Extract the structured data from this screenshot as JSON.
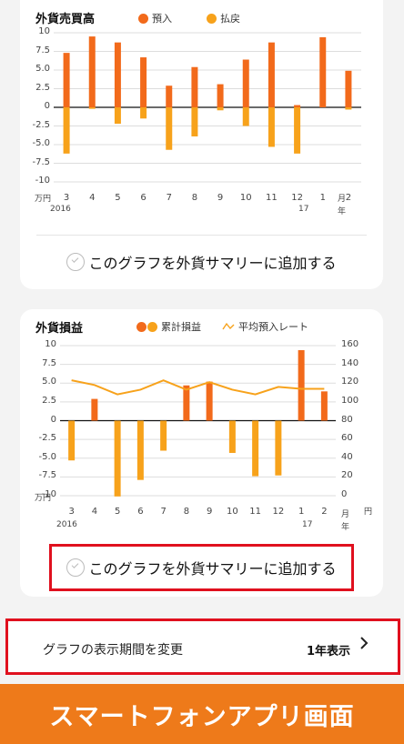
{
  "chart1": {
    "title": "外貨売買高",
    "legend": [
      {
        "label": "預入",
        "color": "#f26a1b"
      },
      {
        "label": "払戻",
        "color": "#f7a21b"
      }
    ],
    "y_unit": "万円",
    "x_unit_top": "月",
    "x_unit_bottom": "年",
    "year_start": "2016",
    "year_mid": "17",
    "add_label": "このグラフを外貨サマリーに追加する"
  },
  "chart2": {
    "title": "外貨損益",
    "legend": [
      {
        "label": "累計損益",
        "color": "#f26a1b",
        "color2": "#f7a21b"
      },
      {
        "label": "平均預入レート",
        "color": "#f7a21b"
      }
    ],
    "y_unit": "万円",
    "y_right_unit": "円",
    "x_unit_top": "月",
    "x_unit_bottom": "年",
    "year_start": "2016",
    "year_mid": "17",
    "add_label": "このグラフを外貨サマリーに追加する"
  },
  "period": {
    "label": "グラフの表示期間を変更",
    "value": "1年表示"
  },
  "banner": {
    "text": "スマートフォンアプリ画面"
  },
  "chart_data": [
    {
      "type": "bar",
      "title": "外貨売買高",
      "ylabel": "万円",
      "xlabel": "月",
      "ylim": [
        -10,
        10
      ],
      "yticks": [
        10,
        7.5,
        5.0,
        2.5,
        0,
        -2.5,
        -5.0,
        -7.5,
        -10
      ],
      "yticklabels": [
        "10",
        "7.5",
        "5.0",
        "2.5",
        "0",
        "-2.5",
        "-5.0",
        "-7.5",
        "-10"
      ],
      "categories": [
        "3",
        "4",
        "5",
        "6",
        "7",
        "8",
        "9",
        "10",
        "11",
        "12",
        "1",
        "2"
      ],
      "series": [
        {
          "name": "預入",
          "color": "#f26a1b",
          "values": [
            7.3,
            9.5,
            8.7,
            6.7,
            2.9,
            5.4,
            3.1,
            6.4,
            8.7,
            0.3,
            9.4,
            4.9
          ]
        },
        {
          "name": "払戻",
          "color": "#f7a21b",
          "values": [
            -6.2,
            -0.2,
            -2.2,
            -1.5,
            -5.7,
            -3.9,
            -0.4,
            -2.5,
            -5.3,
            -6.2,
            0,
            -0.3
          ]
        }
      ],
      "grid": true
    },
    {
      "type": "bar",
      "title": "外貨損益",
      "ylabel": "万円",
      "y2label": "円",
      "xlabel": "月",
      "ylim": [
        -10,
        10
      ],
      "yticks": [
        10,
        7.5,
        5.0,
        2.5,
        0,
        -2.5,
        -5.0,
        -7.5,
        -10
      ],
      "yticklabels": [
        "10",
        "7.5",
        "5.0",
        "2.5",
        "0",
        "-2.5",
        "-5.0",
        "-7.5",
        "-10"
      ],
      "y2lim": [
        0,
        160
      ],
      "y2ticks": [
        160,
        140,
        120,
        100,
        80,
        60,
        40,
        20,
        0
      ],
      "categories": [
        "3",
        "4",
        "5",
        "6",
        "7",
        "8",
        "9",
        "10",
        "11",
        "12",
        "1",
        "2"
      ],
      "series": [
        {
          "name": "累計損益",
          "pos_color": "#f26a1b",
          "neg_color": "#f7a21b",
          "values": [
            -5.3,
            2.9,
            -10.1,
            -7.9,
            -4.0,
            4.7,
            5.2,
            -4.3,
            -7.4,
            -7.3,
            9.4,
            3.9
          ]
        },
        {
          "name": "平均預入レート",
          "type": "line",
          "color": "#f7a21b",
          "axis": "right",
          "values": [
            123,
            118,
            108,
            113,
            123,
            113,
            121,
            113,
            108,
            116,
            114,
            114
          ]
        }
      ],
      "grid": true
    }
  ]
}
